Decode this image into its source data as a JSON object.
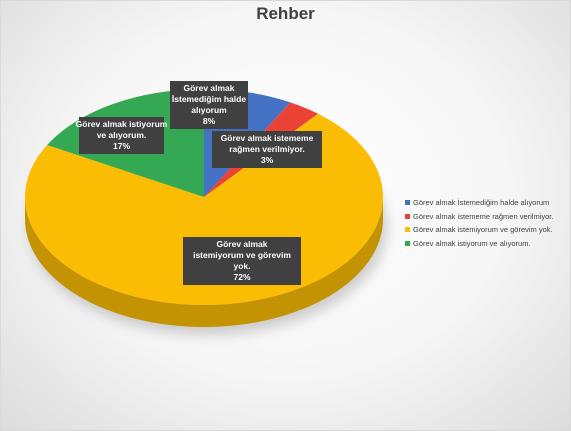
{
  "chart_data": {
    "type": "pie",
    "title": "Rehber",
    "slices": [
      {
        "label": "Görev almak İstemediğim halde alıyorum",
        "data_label": "Görev almak İstemediğim halde alıyorum 8%",
        "percent": 8,
        "color": "#4472C4"
      },
      {
        "label": "Görev almak istememe rağmen verilmiyor.",
        "data_label": "Görev almak istememe rağmen verilmiyor. 3%",
        "percent": 3,
        "color": "#EA4335"
      },
      {
        "label": "Görev almak istemiyorum ve görevim yok.",
        "data_label": "Görev almak istemiyorum ve görevim yok. 72%",
        "percent": 72,
        "color": "#FBBC04"
      },
      {
        "label": "Görev almak istiyorum ve alıyorum.",
        "data_label": "Görev almak istiyorum ve alıyorum. 17%",
        "percent": 17,
        "color": "#34A853"
      }
    ],
    "legend_position": "right",
    "style": "3d-pie"
  },
  "data_labels": [
    [
      "Görev almak",
      "İstemediğim halde",
      "alıyorum",
      "8%"
    ],
    [
      "Görev almak istememe",
      "rağmen verilmiyor.",
      "3%"
    ],
    [
      "Görev almak",
      "istemiyorum ve görevim",
      "yok.",
      "72%"
    ],
    [
      "Görev almak istiyorum",
      "ve alıyorum.",
      "17%"
    ]
  ]
}
